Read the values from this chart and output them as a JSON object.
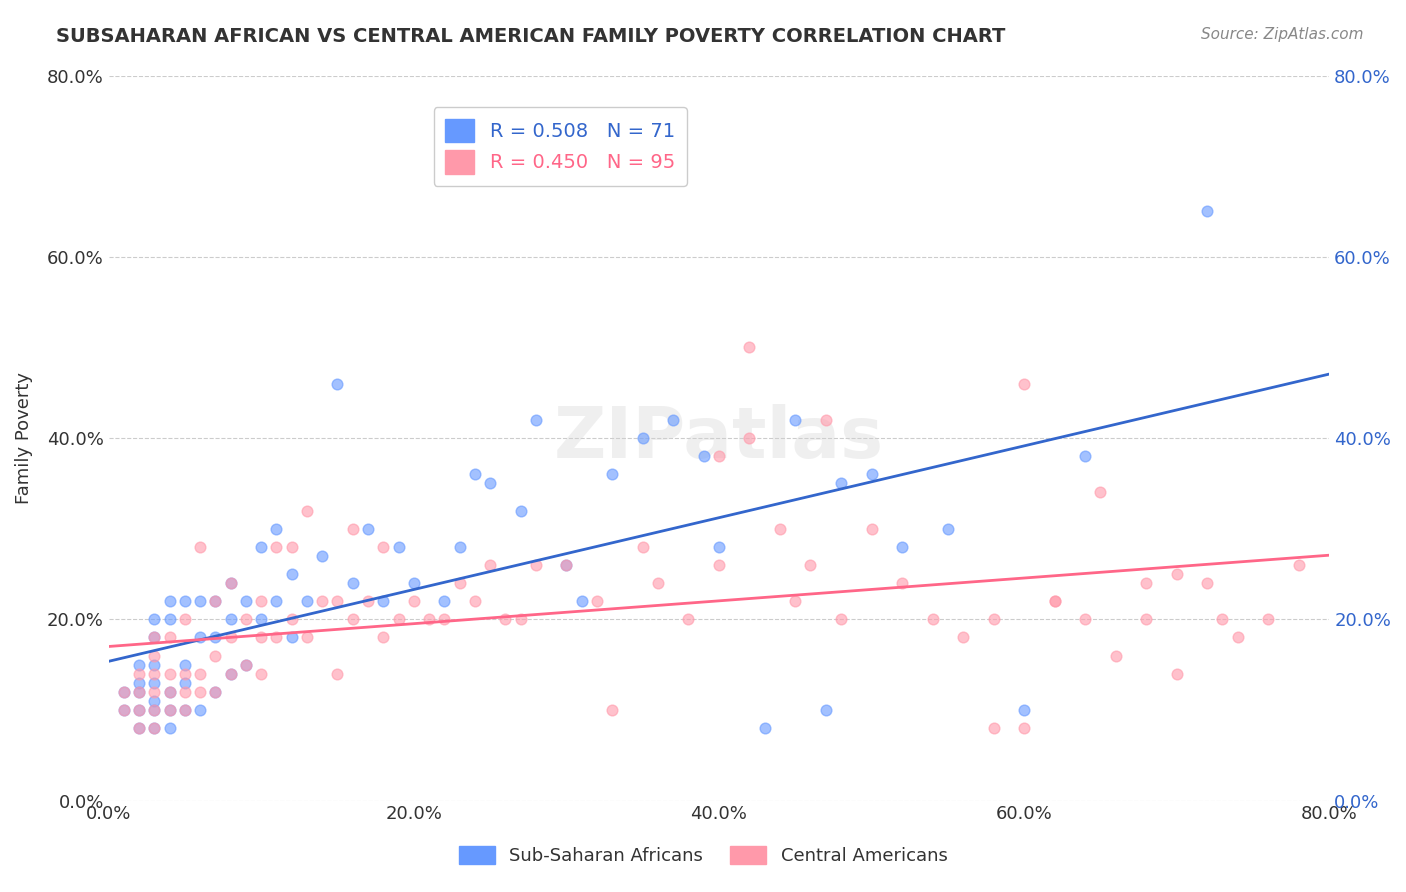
{
  "title": "SUBSAHARAN AFRICAN VS CENTRAL AMERICAN FAMILY POVERTY CORRELATION CHART",
  "source": "Source: ZipAtlas.com",
  "ylabel": "Family Poverty",
  "xlabel_ticks": [
    "0.0%",
    "20.0%",
    "40.0%",
    "60.0%",
    "80.0%"
  ],
  "ylabel_ticks": [
    "0.0%",
    "20.0%",
    "40.0%",
    "60.0%",
    "80.0%"
  ],
  "blue_R": "R = 0.508",
  "blue_N": "N = 71",
  "pink_R": "R = 0.450",
  "pink_N": "N = 95",
  "blue_color": "#6699FF",
  "pink_color": "#FF99AA",
  "blue_line_color": "#3366CC",
  "pink_line_color": "#FF6688",
  "watermark": "ZIPatlas",
  "blue_points_x": [
    0.01,
    0.01,
    0.02,
    0.02,
    0.02,
    0.02,
    0.02,
    0.03,
    0.03,
    0.03,
    0.03,
    0.03,
    0.03,
    0.03,
    0.04,
    0.04,
    0.04,
    0.04,
    0.04,
    0.05,
    0.05,
    0.05,
    0.05,
    0.06,
    0.06,
    0.06,
    0.07,
    0.07,
    0.07,
    0.08,
    0.08,
    0.08,
    0.09,
    0.09,
    0.1,
    0.1,
    0.11,
    0.11,
    0.12,
    0.12,
    0.13,
    0.14,
    0.15,
    0.16,
    0.17,
    0.18,
    0.19,
    0.2,
    0.22,
    0.23,
    0.24,
    0.25,
    0.27,
    0.28,
    0.3,
    0.31,
    0.33,
    0.35,
    0.37,
    0.39,
    0.4,
    0.43,
    0.45,
    0.47,
    0.48,
    0.5,
    0.52,
    0.55,
    0.6,
    0.64,
    0.72
  ],
  "blue_points_y": [
    0.1,
    0.12,
    0.08,
    0.1,
    0.12,
    0.13,
    0.15,
    0.08,
    0.1,
    0.11,
    0.13,
    0.15,
    0.18,
    0.2,
    0.08,
    0.1,
    0.12,
    0.2,
    0.22,
    0.1,
    0.13,
    0.15,
    0.22,
    0.1,
    0.18,
    0.22,
    0.12,
    0.18,
    0.22,
    0.14,
    0.2,
    0.24,
    0.15,
    0.22,
    0.2,
    0.28,
    0.22,
    0.3,
    0.18,
    0.25,
    0.22,
    0.27,
    0.46,
    0.24,
    0.3,
    0.22,
    0.28,
    0.24,
    0.22,
    0.28,
    0.36,
    0.35,
    0.32,
    0.42,
    0.26,
    0.22,
    0.36,
    0.4,
    0.42,
    0.38,
    0.28,
    0.08,
    0.42,
    0.1,
    0.35,
    0.36,
    0.28,
    0.3,
    0.1,
    0.38,
    0.65
  ],
  "pink_points_x": [
    0.01,
    0.01,
    0.02,
    0.02,
    0.02,
    0.02,
    0.03,
    0.03,
    0.03,
    0.03,
    0.03,
    0.03,
    0.04,
    0.04,
    0.04,
    0.04,
    0.05,
    0.05,
    0.05,
    0.05,
    0.06,
    0.06,
    0.06,
    0.07,
    0.07,
    0.07,
    0.08,
    0.08,
    0.08,
    0.09,
    0.09,
    0.1,
    0.1,
    0.1,
    0.11,
    0.11,
    0.12,
    0.12,
    0.13,
    0.13,
    0.14,
    0.15,
    0.15,
    0.16,
    0.16,
    0.17,
    0.18,
    0.18,
    0.19,
    0.2,
    0.21,
    0.22,
    0.23,
    0.24,
    0.25,
    0.26,
    0.27,
    0.28,
    0.3,
    0.32,
    0.33,
    0.35,
    0.36,
    0.38,
    0.4,
    0.42,
    0.44,
    0.46,
    0.48,
    0.5,
    0.52,
    0.54,
    0.56,
    0.58,
    0.6,
    0.62,
    0.64,
    0.66,
    0.68,
    0.7,
    0.58,
    0.6,
    0.62,
    0.65,
    0.68,
    0.7,
    0.72,
    0.73,
    0.74,
    0.76,
    0.78,
    0.4,
    0.42,
    0.45,
    0.47
  ],
  "pink_points_y": [
    0.1,
    0.12,
    0.08,
    0.1,
    0.12,
    0.14,
    0.08,
    0.1,
    0.12,
    0.14,
    0.16,
    0.18,
    0.1,
    0.12,
    0.14,
    0.18,
    0.1,
    0.12,
    0.14,
    0.2,
    0.12,
    0.14,
    0.28,
    0.12,
    0.16,
    0.22,
    0.14,
    0.18,
    0.24,
    0.15,
    0.2,
    0.14,
    0.18,
    0.22,
    0.18,
    0.28,
    0.2,
    0.28,
    0.18,
    0.32,
    0.22,
    0.14,
    0.22,
    0.2,
    0.3,
    0.22,
    0.18,
    0.28,
    0.2,
    0.22,
    0.2,
    0.2,
    0.24,
    0.22,
    0.26,
    0.2,
    0.2,
    0.26,
    0.26,
    0.22,
    0.1,
    0.28,
    0.24,
    0.2,
    0.26,
    0.5,
    0.3,
    0.26,
    0.2,
    0.3,
    0.24,
    0.2,
    0.18,
    0.08,
    0.08,
    0.22,
    0.2,
    0.16,
    0.2,
    0.14,
    0.2,
    0.46,
    0.22,
    0.34,
    0.24,
    0.25,
    0.24,
    0.2,
    0.18,
    0.2,
    0.26,
    0.38,
    0.4,
    0.22,
    0.42
  ]
}
